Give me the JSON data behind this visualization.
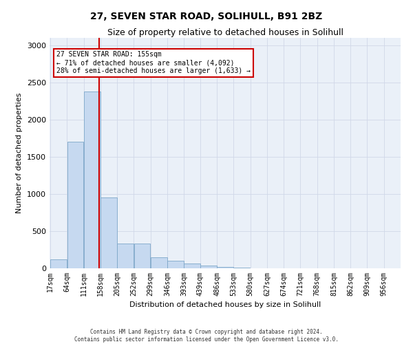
{
  "title": "27, SEVEN STAR ROAD, SOLIHULL, B91 2BZ",
  "subtitle": "Size of property relative to detached houses in Solihull",
  "xlabel": "Distribution of detached houses by size in Solihull",
  "ylabel": "Number of detached properties",
  "bin_edges": [
    17,
    64,
    111,
    158,
    205,
    252,
    299,
    346,
    393,
    439,
    486,
    533,
    580,
    627,
    674,
    721,
    768,
    815,
    862,
    909,
    956
  ],
  "values": [
    120,
    1700,
    2380,
    950,
    330,
    330,
    150,
    100,
    65,
    40,
    20,
    5,
    2,
    0,
    0,
    0,
    0,
    0,
    0,
    0
  ],
  "bar_color": "#c6d9f0",
  "bar_edge_color": "#7da6c8",
  "property_line_x": 155,
  "annotation_text": "27 SEVEN STAR ROAD: 155sqm\n← 71% of detached houses are smaller (4,092)\n28% of semi-detached houses are larger (1,633) →",
  "annotation_box_color": "#ffffff",
  "annotation_box_edge_color": "#cc0000",
  "vline_color": "#cc0000",
  "grid_color": "#d0d8e8",
  "background_color": "#eaf0f8",
  "footer_text": "Contains HM Land Registry data © Crown copyright and database right 2024.\nContains public sector information licensed under the Open Government Licence v3.0.",
  "ylim": [
    0,
    3100
  ],
  "title_fontsize": 10,
  "subtitle_fontsize": 9,
  "tick_fontsize": 7,
  "ylabel_fontsize": 8,
  "xlabel_fontsize": 8,
  "annotation_fontsize": 7,
  "footer_fontsize": 5.5
}
